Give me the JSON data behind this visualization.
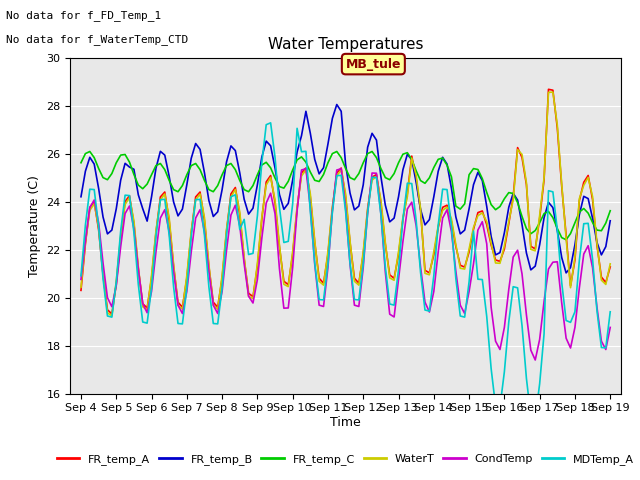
{
  "title": "Water Temperatures",
  "ylabel": "Temperature (C)",
  "xlabel": "Time",
  "ylim": [
    16,
    30
  ],
  "yticks": [
    16,
    18,
    20,
    22,
    24,
    26,
    28,
    30
  ],
  "annotations": [
    "No data for f_FD_Temp_1",
    "No data for f_WaterTemp_CTD"
  ],
  "mb_tule_label": "MB_tule",
  "legend_entries": [
    "FR_temp_A",
    "FR_temp_B",
    "FR_temp_C",
    "WaterT",
    "CondTemp",
    "MDTemp_A"
  ],
  "legend_colors": [
    "#ff0000",
    "#0000cc",
    "#00cc00",
    "#cccc00",
    "#cc00cc",
    "#00cccc"
  ],
  "background_color": "#e8e8e8",
  "xticklabels": [
    "Sep 4",
    "Sep 5",
    "Sep 6",
    "Sep 7",
    "Sep 8",
    "Sep 9",
    "Sep 10",
    "Sep 11",
    "Sep 12",
    "Sep 13",
    "Sep 14",
    "Sep 15",
    "Sep 16",
    "Sep 17",
    "Sep 18",
    "Sep 19"
  ],
  "figsize": [
    6.4,
    4.8
  ],
  "dpi": 100
}
